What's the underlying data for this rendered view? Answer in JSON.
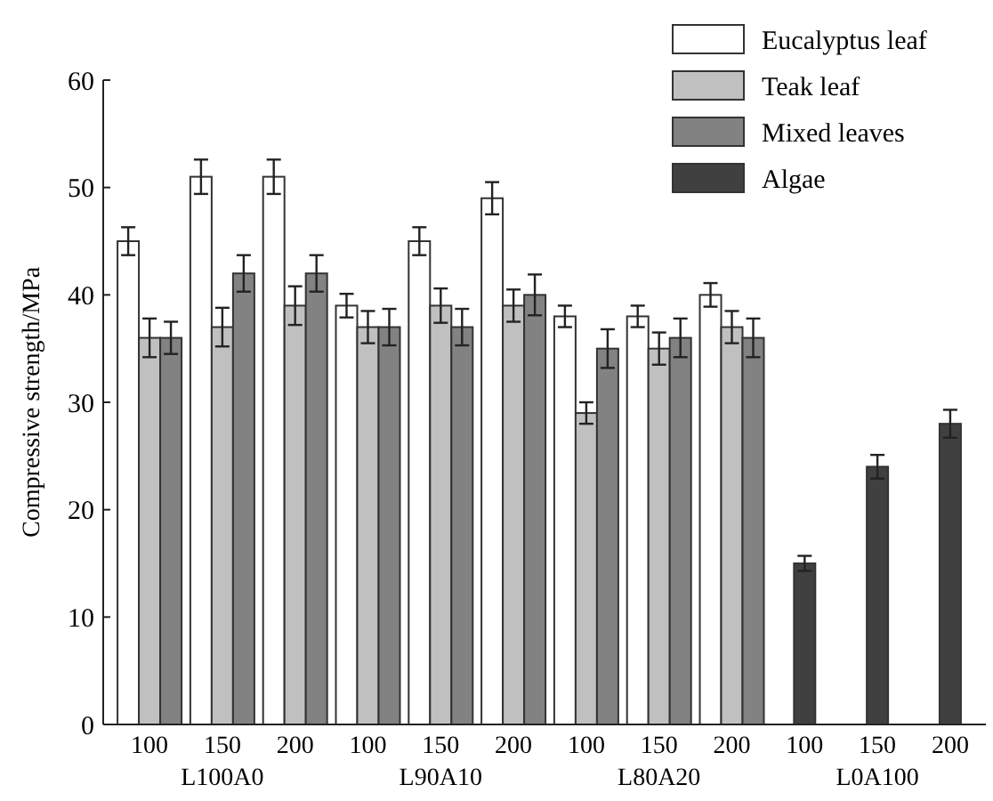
{
  "chart_data": {
    "type": "bar",
    "ylabel": "Compressive strength/MPa",
    "categories": [
      "100",
      "150",
      "200",
      "100",
      "150",
      "200",
      "100",
      "150",
      "200",
      "100",
      "150",
      "200"
    ],
    "annotations": [
      "L100A0",
      "L90A10",
      "L80A20",
      "L0A100"
    ],
    "series": [
      {
        "name": "Eucalyptus leaf",
        "color": "#ffffff",
        "values": [
          45,
          51,
          51,
          39,
          45,
          49,
          38,
          38,
          40,
          null,
          null,
          null
        ],
        "errors": [
          1.3,
          1.6,
          1.6,
          1.1,
          1.3,
          1.5,
          1.0,
          1.0,
          1.1,
          null,
          null,
          null
        ]
      },
      {
        "name": "Teak leaf",
        "color": "#c0c0c0",
        "values": [
          36,
          37,
          39,
          37,
          39,
          39,
          29,
          35,
          37,
          null,
          null,
          null
        ],
        "errors": [
          1.8,
          1.8,
          1.8,
          1.5,
          1.6,
          1.5,
          1.0,
          1.5,
          1.5,
          null,
          null,
          null
        ]
      },
      {
        "name": "Mixed leaves",
        "color": "#828282",
        "values": [
          36,
          42,
          42,
          37,
          37,
          40,
          35,
          36,
          36,
          null,
          null,
          null
        ],
        "errors": [
          1.5,
          1.7,
          1.7,
          1.7,
          1.7,
          1.9,
          1.8,
          1.8,
          1.8,
          null,
          null,
          null
        ]
      },
      {
        "name": "Algae",
        "color": "#404040",
        "values": [
          null,
          null,
          null,
          null,
          null,
          null,
          null,
          null,
          null,
          15,
          24,
          28
        ],
        "errors": [
          null,
          null,
          null,
          null,
          null,
          null,
          null,
          null,
          null,
          0.7,
          1.1,
          1.3
        ]
      }
    ],
    "ylim": [
      0,
      60
    ],
    "yticks": [
      0,
      10,
      20,
      30,
      40,
      50,
      60
    ],
    "legend": "top right"
  }
}
